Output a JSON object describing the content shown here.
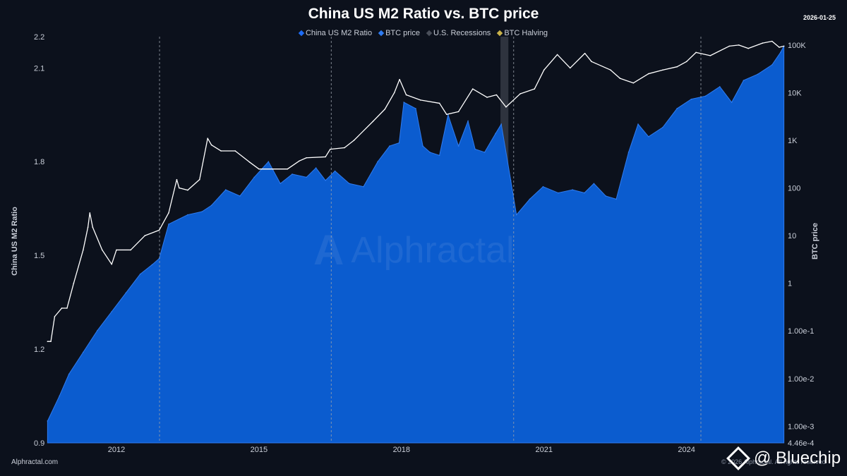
{
  "chart_data": {
    "type": "area",
    "title": "China US M2 Ratio vs. BTC price",
    "date_stamp": "2026-01-25",
    "legend_position": "top-center",
    "grid": false,
    "y_left": {
      "label": "China US M2 Ratio",
      "ticks": [
        "0.9",
        "1.2",
        "1.5",
        "1.8",
        "2.1",
        "2.2"
      ],
      "tick_values": [
        0.9,
        1.2,
        1.5,
        1.8,
        2.1,
        2.2
      ],
      "range": [
        0.9,
        2.2
      ]
    },
    "y_right": {
      "label": "BTC price",
      "scale": "log",
      "ticks": [
        "4.46e-4",
        "1.00e-3",
        "1.00e-2",
        "1.00e-1",
        "1",
        "10",
        "100",
        "1K",
        "10K",
        "100K"
      ],
      "tick_values": [
        0.000446,
        0.001,
        0.01,
        0.1,
        1,
        10,
        100,
        1000,
        10000,
        100000
      ],
      "range": [
        0.000446,
        150000
      ]
    },
    "x_axis": {
      "ticks": [
        "2012",
        "2015",
        "2018",
        "2021",
        "2024"
      ],
      "tick_values": [
        2012,
        2015,
        2018,
        2021,
        2024
      ],
      "range": [
        2010.5,
        2026.07
      ]
    },
    "legend": [
      {
        "label": "China US M2 Ratio",
        "color": "#1e6cf5"
      },
      {
        "label": "BTC price",
        "color": "#2e7bf0"
      },
      {
        "label": "U.S. Recessions",
        "color": "#4a4f5a"
      },
      {
        "label": "BTC Halving",
        "color": "#c9b24a"
      }
    ],
    "recessions": [
      {
        "start": "2020-02",
        "end": "2020-04"
      }
    ],
    "halvings": [
      "2012-11-28",
      "2016-07-09",
      "2020-05-11",
      "2024-04-20"
    ],
    "series": [
      {
        "name": "BTC price",
        "axis": "right",
        "color": "#ffffff",
        "points": [
          [
            "2010.55",
            0.06
          ],
          [
            "2010.62",
            0.06
          ],
          [
            "2010.70",
            0.2
          ],
          [
            "2010.85",
            0.3
          ],
          [
            "2010.96",
            0.3
          ],
          [
            "2011.10",
            1
          ],
          [
            "2011.30",
            5
          ],
          [
            "2011.40",
            15
          ],
          [
            "2011.44",
            30
          ],
          [
            "2011.50",
            15
          ],
          [
            "2011.70",
            5
          ],
          [
            "2011.90",
            2.5
          ],
          [
            "2012.00",
            5
          ],
          [
            "2012.30",
            5
          ],
          [
            "2012.60",
            10
          ],
          [
            "2012.90",
            13
          ],
          [
            "2013.10",
            30
          ],
          [
            "2013.27",
            150
          ],
          [
            "2013.32",
            100
          ],
          [
            "2013.50",
            90
          ],
          [
            "2013.75",
            150
          ],
          [
            "2013.92",
            1100
          ],
          [
            "2014.00",
            800
          ],
          [
            "2014.20",
            600
          ],
          [
            "2014.50",
            600
          ],
          [
            "2014.80",
            350
          ],
          [
            "2015.00",
            250
          ],
          [
            "2015.30",
            250
          ],
          [
            "2015.60",
            250
          ],
          [
            "2015.85",
            370
          ],
          [
            "2016.00",
            430
          ],
          [
            "2016.40",
            450
          ],
          [
            "2016.50",
            650
          ],
          [
            "2016.80",
            700
          ],
          [
            "2017.00",
            1000
          ],
          [
            "2017.40",
            2500
          ],
          [
            "2017.65",
            4500
          ],
          [
            "2017.85",
            10000
          ],
          [
            "2017.96",
            19000
          ],
          [
            "2018.10",
            9000
          ],
          [
            "2018.40",
            7000
          ],
          [
            "2018.80",
            6000
          ],
          [
            "2018.95",
            3500
          ],
          [
            "2019.20",
            4000
          ],
          [
            "2019.50",
            12000
          ],
          [
            "2019.80",
            8000
          ],
          [
            "2020.00",
            9000
          ],
          [
            "2020.20",
            5000
          ],
          [
            "2020.50",
            9500
          ],
          [
            "2020.80",
            12000
          ],
          [
            "2021.00",
            30000
          ],
          [
            "2021.28",
            63000
          ],
          [
            "2021.55",
            33000
          ],
          [
            "2021.86",
            67000
          ],
          [
            "2022.00",
            45000
          ],
          [
            "2022.40",
            30000
          ],
          [
            "2022.60",
            20000
          ],
          [
            "2022.88",
            16000
          ],
          [
            "2023.20",
            25000
          ],
          [
            "2023.50",
            30000
          ],
          [
            "2023.80",
            35000
          ],
          [
            "2024.00",
            45000
          ],
          [
            "2024.20",
            70000
          ],
          [
            "2024.50",
            60000
          ],
          [
            "2024.90",
            95000
          ],
          [
            "2025.10",
            100000
          ],
          [
            "2025.30",
            85000
          ],
          [
            "2025.60",
            110000
          ],
          [
            "2025.80",
            120000
          ],
          [
            "2025.95",
            90000
          ],
          [
            "2026.05",
            95000
          ]
        ]
      },
      {
        "name": "China US M2 Ratio",
        "axis": "left",
        "color": "#0b5ccf",
        "points": [
          [
            "2010.55",
            0.97
          ],
          [
            "2010.80",
            1.05
          ],
          [
            "2011.00",
            1.12
          ],
          [
            "2011.30",
            1.19
          ],
          [
            "2011.60",
            1.26
          ],
          [
            "2011.90",
            1.32
          ],
          [
            "2012.20",
            1.38
          ],
          [
            "2012.50",
            1.44
          ],
          [
            "2012.75",
            1.47
          ],
          [
            "2012.90",
            1.49
          ],
          [
            "2013.10",
            1.6
          ],
          [
            "2013.50",
            1.63
          ],
          [
            "2013.80",
            1.64
          ],
          [
            "2014.00",
            1.66
          ],
          [
            "2014.30",
            1.71
          ],
          [
            "2014.60",
            1.69
          ],
          [
            "2014.90",
            1.75
          ],
          [
            "2015.20",
            1.8
          ],
          [
            "2015.45",
            1.73
          ],
          [
            "2015.70",
            1.76
          ],
          [
            "2016.00",
            1.75
          ],
          [
            "2016.20",
            1.78
          ],
          [
            "2016.40",
            1.74
          ],
          [
            "2016.60",
            1.77
          ],
          [
            "2016.90",
            1.73
          ],
          [
            "2017.20",
            1.72
          ],
          [
            "2017.50",
            1.8
          ],
          [
            "2017.75",
            1.85
          ],
          [
            "2017.95",
            1.86
          ],
          [
            "2018.05",
            1.99
          ],
          [
            "2018.30",
            1.97
          ],
          [
            "2018.45",
            1.85
          ],
          [
            "2018.60",
            1.83
          ],
          [
            "2018.80",
            1.82
          ],
          [
            "2018.98",
            1.95
          ],
          [
            "2019.20",
            1.85
          ],
          [
            "2019.40",
            1.93
          ],
          [
            "2019.55",
            1.84
          ],
          [
            "2019.75",
            1.83
          ],
          [
            "2019.98",
            1.89
          ],
          [
            "2020.10",
            1.92
          ],
          [
            "2020.30",
            1.74
          ],
          [
            "2020.42",
            1.63
          ],
          [
            "2020.70",
            1.68
          ],
          [
            "2020.98",
            1.72
          ],
          [
            "2021.30",
            1.7
          ],
          [
            "2021.60",
            1.71
          ],
          [
            "2021.85",
            1.7
          ],
          [
            "2022.05",
            1.73
          ],
          [
            "2022.30",
            1.69
          ],
          [
            "2022.52",
            1.68
          ],
          [
            "2022.78",
            1.83
          ],
          [
            "2022.98",
            1.92
          ],
          [
            "2023.20",
            1.88
          ],
          [
            "2023.50",
            1.91
          ],
          [
            "2023.80",
            1.97
          ],
          [
            "2024.10",
            2.0
          ],
          [
            "2024.40",
            2.01
          ],
          [
            "2024.70",
            2.04
          ],
          [
            "2024.95",
            1.99
          ],
          [
            "2025.20",
            2.06
          ],
          [
            "2025.50",
            2.08
          ],
          [
            "2025.80",
            2.11
          ],
          [
            "2025.98",
            2.15
          ],
          [
            "2026.05",
            2.17
          ]
        ]
      }
    ]
  },
  "footer": {
    "source": "Alphractal.com",
    "copyright": "© 2026 Alphractal. All rights reserved"
  },
  "watermark": {
    "text": "Alphractal"
  },
  "overlay_brand": {
    "text": "@ Bluechip"
  }
}
